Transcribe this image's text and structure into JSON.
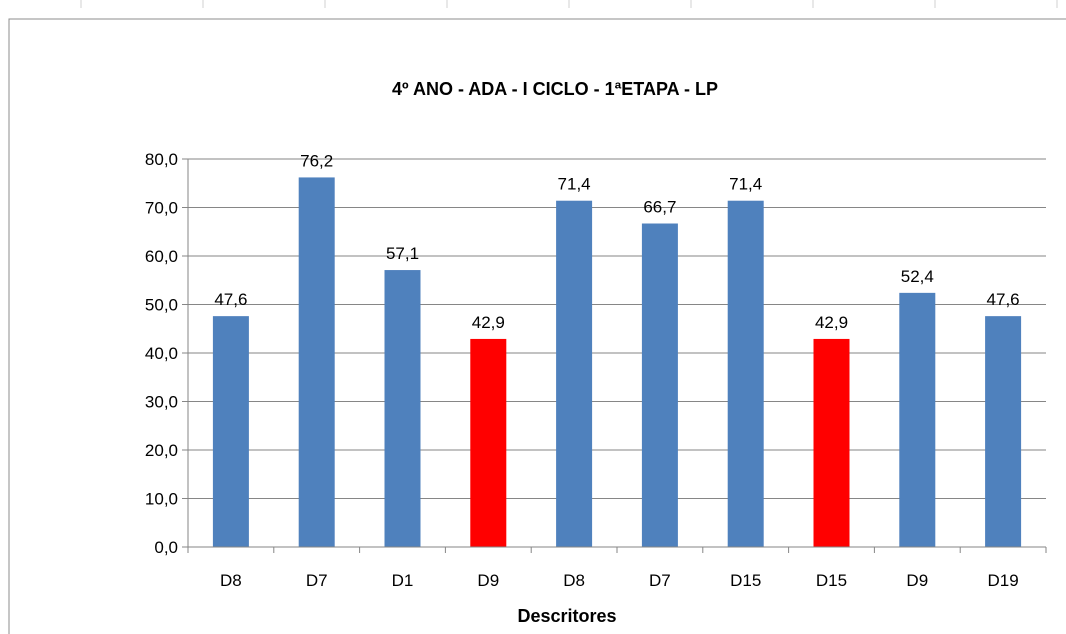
{
  "chart_data": {
    "type": "bar",
    "title": "4º ANO - ADA - I CICLO - 1ªETAPA - LP",
    "xlabel": "Descritores",
    "ylabel": "",
    "categories": [
      "D8",
      "D7",
      "D1",
      "D9",
      "D8",
      "D7",
      "D15",
      "D15",
      "D9",
      "D19"
    ],
    "values": [
      47.6,
      76.2,
      57.1,
      42.9,
      71.4,
      66.7,
      71.4,
      42.9,
      52.4,
      47.6
    ],
    "value_labels": [
      "47,6",
      "76,2",
      "57,1",
      "42,9",
      "71,4",
      "66,7",
      "71,4",
      "42,9",
      "52,4",
      "47,6"
    ],
    "bar_colors": [
      "#4F81BD",
      "#4F81BD",
      "#4F81BD",
      "#FF0000",
      "#4F81BD",
      "#4F81BD",
      "#4F81BD",
      "#FF0000",
      "#4F81BD",
      "#4F81BD"
    ],
    "ylim": [
      0,
      80
    ],
    "yticks": [
      0,
      10,
      20,
      30,
      40,
      50,
      60,
      70,
      80
    ],
    "ytick_labels": [
      "0,0",
      "10,0",
      "20,0",
      "30,0",
      "40,0",
      "50,0",
      "60,0",
      "70,0",
      "80,0"
    ],
    "grid": true,
    "legend": "none",
    "colors": {
      "primary": "#4F81BD",
      "highlight": "#FF0000",
      "grid": "#868686"
    }
  }
}
